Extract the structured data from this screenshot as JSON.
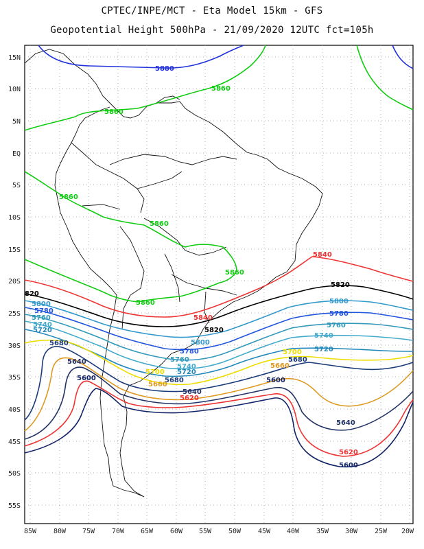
{
  "title": "CPTEC/INPE/MCT  -   Eta Model 15km  -  GFS",
  "subtitle": "Geopotential Height 500hPa  -  21/09/2020 12UTC fct=105h",
  "lat_labels": [
    "15N",
    "10N",
    "5N",
    "EQ",
    "5S",
    "10S",
    "15S",
    "20S",
    "25S",
    "30S",
    "35S",
    "40S",
    "45S",
    "50S",
    "55S"
  ],
  "lon_labels": [
    "85W",
    "80W",
    "75W",
    "70W",
    "65W",
    "60W",
    "55W",
    "50W",
    "45W",
    "40W",
    "35W",
    "30W",
    "25W",
    "20W"
  ],
  "colors": {
    "5880": "#2233dd",
    "5860": "#11cc11",
    "5840": "#ee3333",
    "5820": "#000000",
    "5800": "#3399cc",
    "5780": "#2255dd",
    "5760": "#3399bb",
    "5740": "#44aacc",
    "5720": "#2288bb",
    "5700": "#eedd00",
    "5680": "#1a3a7a",
    "5660": "#dd9922",
    "5640": "#223366",
    "5620": "#ee3333",
    "5600": "#112266"
  },
  "contour_labels": [
    {
      "text": "5880",
      "level": "5880"
    },
    {
      "text": "5860",
      "level": "5860"
    },
    {
      "text": "5860",
      "level": "5860"
    },
    {
      "text": "5860",
      "level": "5860"
    },
    {
      "text": "5860",
      "level": "5860"
    },
    {
      "text": "5860",
      "level": "5860"
    },
    {
      "text": "5860",
      "level": "5860"
    },
    {
      "text": "5840",
      "level": "5840"
    },
    {
      "text": "5840",
      "level": "5840"
    },
    {
      "text": "5820",
      "level": "5820"
    },
    {
      "text": "5820",
      "level": "5820"
    },
    {
      "text": "820",
      "level": "5820"
    },
    {
      "text": "5800",
      "level": "5800"
    },
    {
      "text": "5800",
      "level": "5800"
    },
    {
      "text": "5800",
      "level": "5800"
    },
    {
      "text": "5780",
      "level": "5780"
    },
    {
      "text": "5780",
      "level": "5780"
    },
    {
      "text": "5780",
      "level": "5780"
    },
    {
      "text": "5760",
      "level": "5760"
    },
    {
      "text": "5760",
      "level": "5760"
    },
    {
      "text": "5760",
      "level": "5760"
    },
    {
      "text": "5740",
      "level": "5740"
    },
    {
      "text": "5740",
      "level": "5740"
    },
    {
      "text": "5740",
      "level": "5740"
    },
    {
      "text": "5720",
      "level": "5720"
    },
    {
      "text": "5720",
      "level": "5720"
    },
    {
      "text": "5720",
      "level": "5720"
    },
    {
      "text": "5700",
      "level": "5700"
    },
    {
      "text": "5700",
      "level": "5700"
    },
    {
      "text": "5680",
      "level": "5680"
    },
    {
      "text": "5680",
      "level": "5680"
    },
    {
      "text": "5680",
      "level": "5680"
    },
    {
      "text": "5660",
      "level": "5660"
    },
    {
      "text": "5660",
      "level": "5660"
    },
    {
      "text": "5640",
      "level": "5640"
    },
    {
      "text": "5640",
      "level": "5640"
    },
    {
      "text": "5640",
      "level": "5640"
    },
    {
      "text": "5620",
      "level": "5620"
    },
    {
      "text": "5620",
      "level": "5620"
    },
    {
      "text": "5600",
      "level": "5600"
    },
    {
      "text": "5600",
      "level": "5600"
    },
    {
      "text": "5600",
      "level": "5600"
    }
  ]
}
